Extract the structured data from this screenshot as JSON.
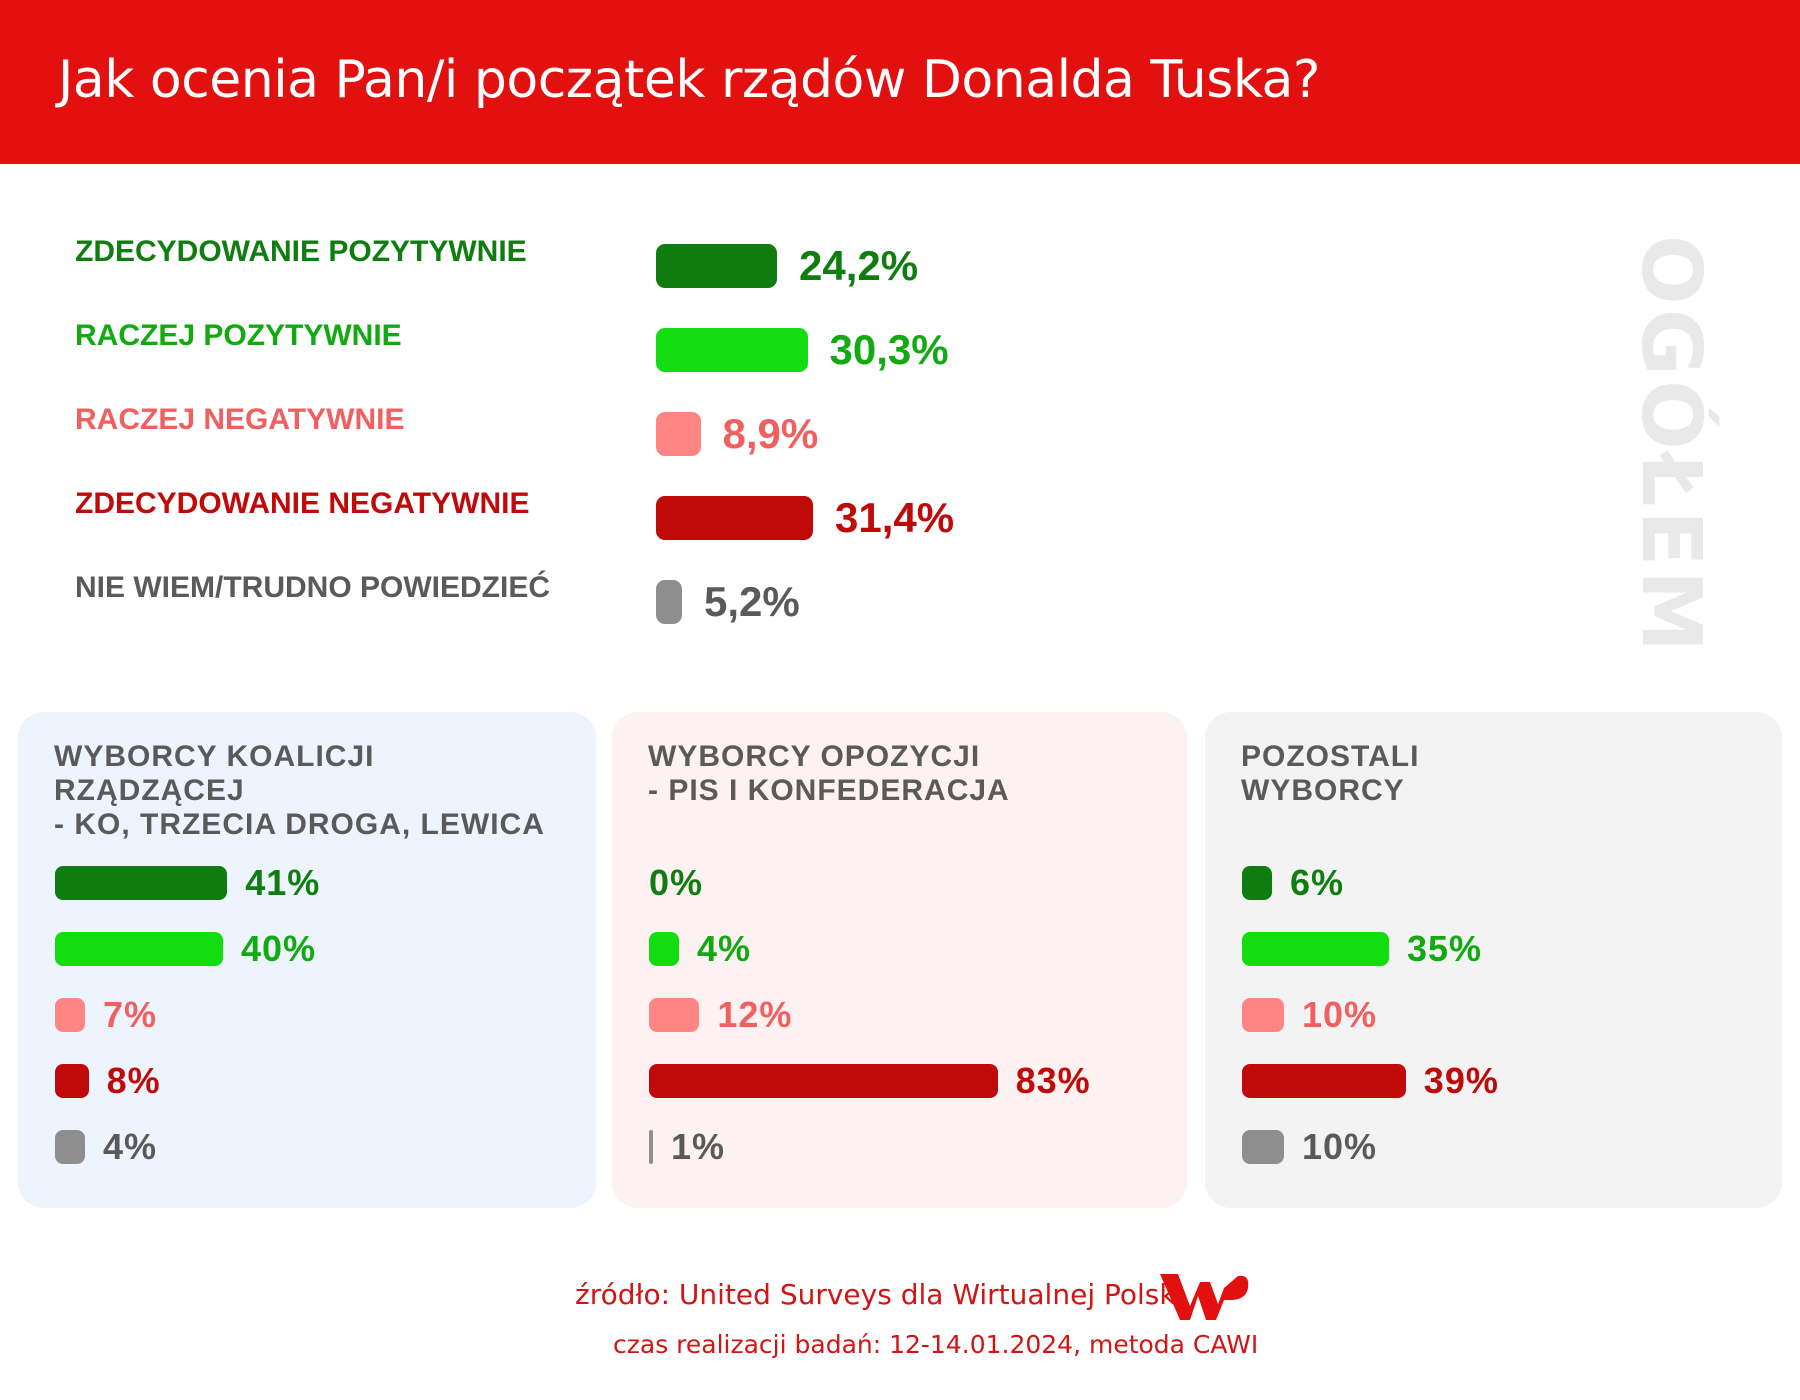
{
  "header": {
    "title": "Jak ocenia Pan/i początek rządów Donalda Tuska?"
  },
  "side_label": "OGÓŁEM",
  "colors": {
    "strong_positive": "#0f7d0f",
    "positive": "#11dd11",
    "negative": "#ff8585",
    "strong_negative": "#c00909",
    "unknown": "#8e8e8e",
    "header_bg": "#e31010",
    "panel_coalition_bg": "#edf4fe",
    "panel_opposition_bg": "#fdf1f1",
    "panel_others_bg": "#f3f3f3"
  },
  "chart_data": [
    {
      "type": "bar",
      "title": "OGÓŁEM",
      "orientation": "horizontal",
      "categories": [
        "ZDECYDOWANIE POZYTYWNIE",
        "RACZEJ POZYTYWNIE",
        "RACZEJ NEGATYWNIE",
        "ZDECYDOWANIE NEGATYWNIE",
        "NIE WIEM/TRUDNO POWIEDZIEĆ"
      ],
      "values": [
        24.2,
        30.3,
        8.9,
        31.4,
        5.2
      ],
      "value_labels": [
        "24,2%",
        "30,3%",
        "8,9%",
        "31,4%",
        "5,2%"
      ],
      "label_colors": [
        "#0f7d0f",
        "#11aa11",
        "#f06060",
        "#c00909",
        "#5a5a5a"
      ],
      "bar_colors": [
        "#0f7d0f",
        "#11dd11",
        "#ff8585",
        "#c00909",
        "#8e8e8e"
      ],
      "ylim": [
        0,
        100
      ]
    },
    {
      "type": "bar",
      "title": "WYBORCY KOALICJI RZĄDZĄCEJ\n- KO, TRZECIA DROGA, LEWICA",
      "orientation": "horizontal",
      "categories": [
        "ZDECYDOWANIE POZYTYWNIE",
        "RACZEJ POZYTYWNIE",
        "RACZEJ NEGATYWNIE",
        "ZDECYDOWANIE NEGATYWNIE",
        "NIE WIEM/TRUDNO POWIEDZIEĆ"
      ],
      "values": [
        41,
        40,
        7,
        8,
        4
      ],
      "value_labels": [
        "41%",
        "40%",
        "7%",
        "8%",
        "4%"
      ]
    },
    {
      "type": "bar",
      "title": "WYBORCY OPOZYCJI\n- PIS I KONFEDERACJA",
      "orientation": "horizontal",
      "categories": [
        "ZDECYDOWANIE POZYTYWNIE",
        "RACZEJ POZYTYWNIE",
        "RACZEJ NEGATYWNIE",
        "ZDECYDOWANIE NEGATYWNIE",
        "NIE WIEM/TRUDNO POWIEDZIEĆ"
      ],
      "values": [
        0,
        4,
        12,
        83,
        1
      ],
      "value_labels": [
        "0%",
        "4%",
        "12%",
        "83%",
        "1%"
      ]
    },
    {
      "type": "bar",
      "title": "POZOSTALI\nWYBORCY",
      "orientation": "horizontal",
      "categories": [
        "ZDECYDOWANIE POZYTYWNIE",
        "RACZEJ POZYTYWNIE",
        "RACZEJ NEGATYWNIE",
        "ZDECYDOWANIE NEGATYWNIE",
        "NIE WIEM/TRUDNO POWIEDZIEĆ"
      ],
      "values": [
        6,
        35,
        10,
        39,
        10
      ],
      "value_labels": [
        "6%",
        "35%",
        "10%",
        "39%",
        "10%"
      ]
    }
  ],
  "footer": {
    "source": "źródło: United Surveys dla Wirtualnej Polski",
    "method": "czas realizacji badań: 12-14.01.2024, metoda CAWI",
    "logo": "WP"
  }
}
